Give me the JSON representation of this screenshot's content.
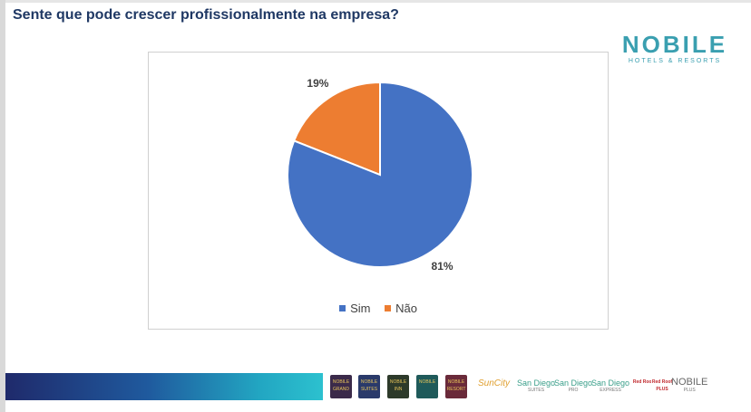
{
  "title": "Sente que pode crescer profissionalmente na empresa?",
  "logo": {
    "word": "NOBILE",
    "sub": "HOTELS & RESORTS"
  },
  "chart_data": {
    "type": "pie",
    "title": "",
    "slices": [
      {
        "label": "Sim",
        "value": 81,
        "display": "81%",
        "color": "#4472c4"
      },
      {
        "label": "Não",
        "value": 19,
        "display": "19%",
        "color": "#ed7d31"
      }
    ],
    "legend_position": "bottom"
  },
  "legend": {
    "sim": "Sim",
    "nao": "Não"
  },
  "brands": {
    "grand": "NOBILE GRAND",
    "suites": "NOBILE SUITES",
    "inn": "NOBILE INN",
    "nobile4": "NOBILE",
    "resort": "NOBILE RESORT",
    "suncity": "SunCity",
    "sandiego_suites": "San Diego",
    "sandiego_suites_sub": "SUITES",
    "sandiego_pro": "San Diego",
    "sandiego_pro_sub": "PRO",
    "sandiego_express": "San Diego",
    "sandiego_express_sub": "EXPRESS",
    "redroof": "Red Roof",
    "redroof_plus": "Red Roof PLUS",
    "nobile_plus": "NOBILE",
    "nobile_plus_sub": "PLUS"
  },
  "colors": {
    "title": "#1f3864",
    "brand": "#3a9fb0"
  }
}
